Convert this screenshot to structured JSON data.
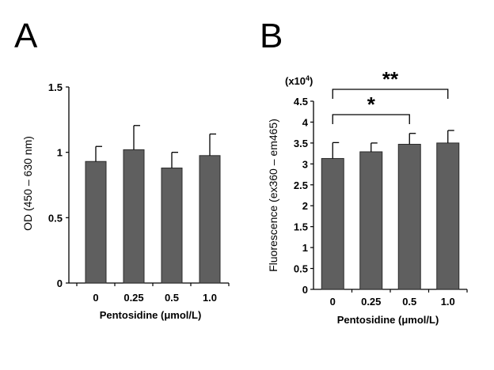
{
  "chart_data": [
    {
      "panel": "A",
      "type": "bar",
      "categories": [
        "0",
        "0.25",
        "0.5",
        "1.0"
      ],
      "values": [
        0.93,
        1.02,
        0.88,
        0.975
      ],
      "errors": [
        0.115,
        0.185,
        0.12,
        0.165
      ],
      "xlabel": "Pentosidine (μmol/L)",
      "ylabel": "OD (450 – 630 nm)",
      "ylim": [
        0,
        1.5
      ],
      "yticks": [
        "0",
        "0.5",
        "1",
        "1.5"
      ],
      "bar_color": "#5f5f5f",
      "grid": false
    },
    {
      "panel": "B",
      "type": "bar",
      "categories": [
        "0",
        "0.25",
        "0.5",
        "1.0"
      ],
      "values": [
        3.13,
        3.29,
        3.47,
        3.5
      ],
      "errors": [
        0.38,
        0.21,
        0.26,
        0.3
      ],
      "xlabel": "Pentosidine (μmol/L)",
      "ylabel": "Fluorescence (ex360 – em465)",
      "unit_prefix": "(x10",
      "unit_exp": "4",
      "unit_suffix": ")",
      "ylim": [
        0,
        4.5
      ],
      "yticks": [
        "0",
        "0.5",
        "1",
        "1.5",
        "2",
        "2.5",
        "3",
        "3.5",
        "4",
        "4.5"
      ],
      "bar_color": "#5f5f5f",
      "grid": false,
      "significance": [
        {
          "from": 0,
          "to": 2,
          "label": "*"
        },
        {
          "from": 0,
          "to": 3,
          "label": "**"
        }
      ]
    }
  ]
}
